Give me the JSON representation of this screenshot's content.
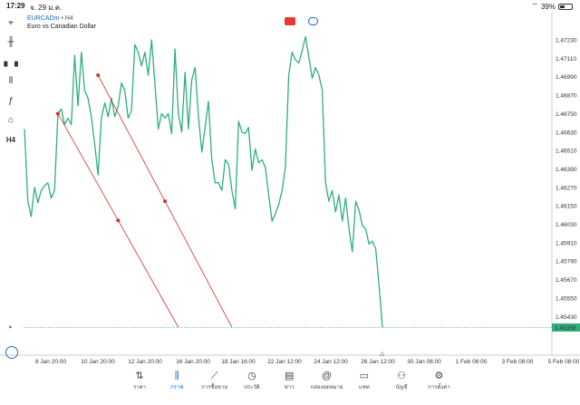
{
  "status": {
    "time": "17:29",
    "date": "จ. 29 ม.ค.",
    "battery": "39%"
  },
  "chart": {
    "symbol": "EURCADm",
    "timeframe": "H4",
    "description": "Euro vs Canadian Dollar",
    "current_price": "1.45358"
  },
  "toolbar": [
    {
      "name": "crosshair-icon",
      "glyph": "⌖"
    },
    {
      "name": "candle-icon",
      "glyph": "╫"
    },
    {
      "name": "bars-icon",
      "glyph": "▖▗"
    },
    {
      "name": "indicators-icon",
      "glyph": "⫴"
    },
    {
      "name": "function-icon",
      "glyph": "ƒ"
    },
    {
      "name": "objects-icon",
      "glyph": "⌂"
    },
    {
      "name": "timeframe-label",
      "glyph": "H4"
    }
  ],
  "chart_data": {
    "type": "line",
    "price_labels": [
      "1.47230",
      "1.47110",
      "1.46990",
      "1.46870",
      "1.46750",
      "1.46630",
      "1.46510",
      "1.46390",
      "1.46270",
      "1.46150",
      "1.46030",
      "1.45910",
      "1.45790",
      "1.45670",
      "1.45550",
      "1.45430"
    ],
    "time_labels": [
      "8 Jan 20:00",
      "10 Jan 20:00",
      "12 Jan 20:00",
      "16 Jan 20:00",
      "18 Jan 16:00",
      "22 Jan 12:00",
      "24 Jan 12:00",
      "26 Jan 12:00",
      "30 Jan 08:00",
      "1 Feb 08:00",
      "3 Feb 08:00",
      "5 Feb 08:00"
    ],
    "ylim": [
      1.4536,
      1.4735
    ],
    "series_color": "#2eaf7d",
    "values": [
      1.4665,
      1.4618,
      1.4608,
      1.4627,
      1.4617,
      1.4625,
      1.4628,
      1.463,
      1.462,
      1.4625,
      1.4675,
      1.4678,
      1.4668,
      1.4672,
      1.4668,
      1.4713,
      1.468,
      1.4715,
      1.469,
      1.4685,
      1.4673,
      1.4655,
      1.4635,
      1.4672,
      1.4682,
      1.4673,
      1.4685,
      1.4673,
      1.468,
      1.4695,
      1.469,
      1.4672,
      1.4677,
      1.472,
      1.4715,
      1.4706,
      1.4715,
      1.47,
      1.4723,
      1.4694,
      1.4665,
      1.4675,
      1.4672,
      1.4675,
      1.4662,
      1.4717,
      1.4675,
      1.4663,
      1.4702,
      1.4665,
      1.4697,
      1.4705,
      1.4673,
      1.465,
      1.4666,
      1.4683,
      1.4645,
      1.463,
      1.463,
      1.4625,
      1.4645,
      1.4642,
      1.4625,
      1.4613,
      1.467,
      1.4663,
      1.4662,
      1.4666,
      1.4638,
      1.4652,
      1.4643,
      1.4645,
      1.464,
      1.4622,
      1.4605,
      1.461,
      1.4616,
      1.4625,
      1.464,
      1.47,
      1.4715,
      1.471,
      1.4708,
      1.4716,
      1.4725,
      1.4712,
      1.4698,
      1.4705,
      1.47,
      1.469,
      1.463,
      1.4618,
      1.4625,
      1.4611,
      1.4622,
      1.4605,
      1.462,
      1.46,
      1.4585,
      1.4618,
      1.4612,
      1.4602,
      1.46,
      1.459,
      1.4592,
      1.4587,
      1.4563,
      1.4536
    ],
    "trendlines": [
      {
        "from_index": 10,
        "from_value": 1.4675,
        "to_index": 46,
        "to_value": 1.4536
      },
      {
        "from_index": 22,
        "from_value": 1.47,
        "to_index": 62,
        "to_value": 1.4536
      }
    ],
    "trendline_color": "#d32f2f",
    "current_line_color": "#2eaf7d"
  },
  "tabs": [
    {
      "name": "tab-quotes",
      "label": "ราคา",
      "glyph": "⇅",
      "active": false
    },
    {
      "name": "tab-chart",
      "label": "กราฟ",
      "glyph": "⫼",
      "active": true
    },
    {
      "name": "tab-trade",
      "label": "การซื้อขาย",
      "glyph": "⟋",
      "active": false
    },
    {
      "name": "tab-history",
      "label": "ประวัติ",
      "glyph": "◷",
      "active": false
    },
    {
      "name": "tab-news",
      "label": "ข่าว",
      "glyph": "▤",
      "active": false
    },
    {
      "name": "tab-mailbox",
      "label": "กล่องจดหมาย",
      "glyph": "@",
      "active": false
    },
    {
      "name": "tab-chat",
      "label": "แชท",
      "glyph": "▭",
      "active": false
    },
    {
      "name": "tab-account",
      "label": "บัญชี",
      "glyph": "⚇",
      "active": false
    },
    {
      "name": "tab-settings",
      "label": "การตั้งค่า",
      "glyph": "⚙",
      "active": false
    }
  ]
}
